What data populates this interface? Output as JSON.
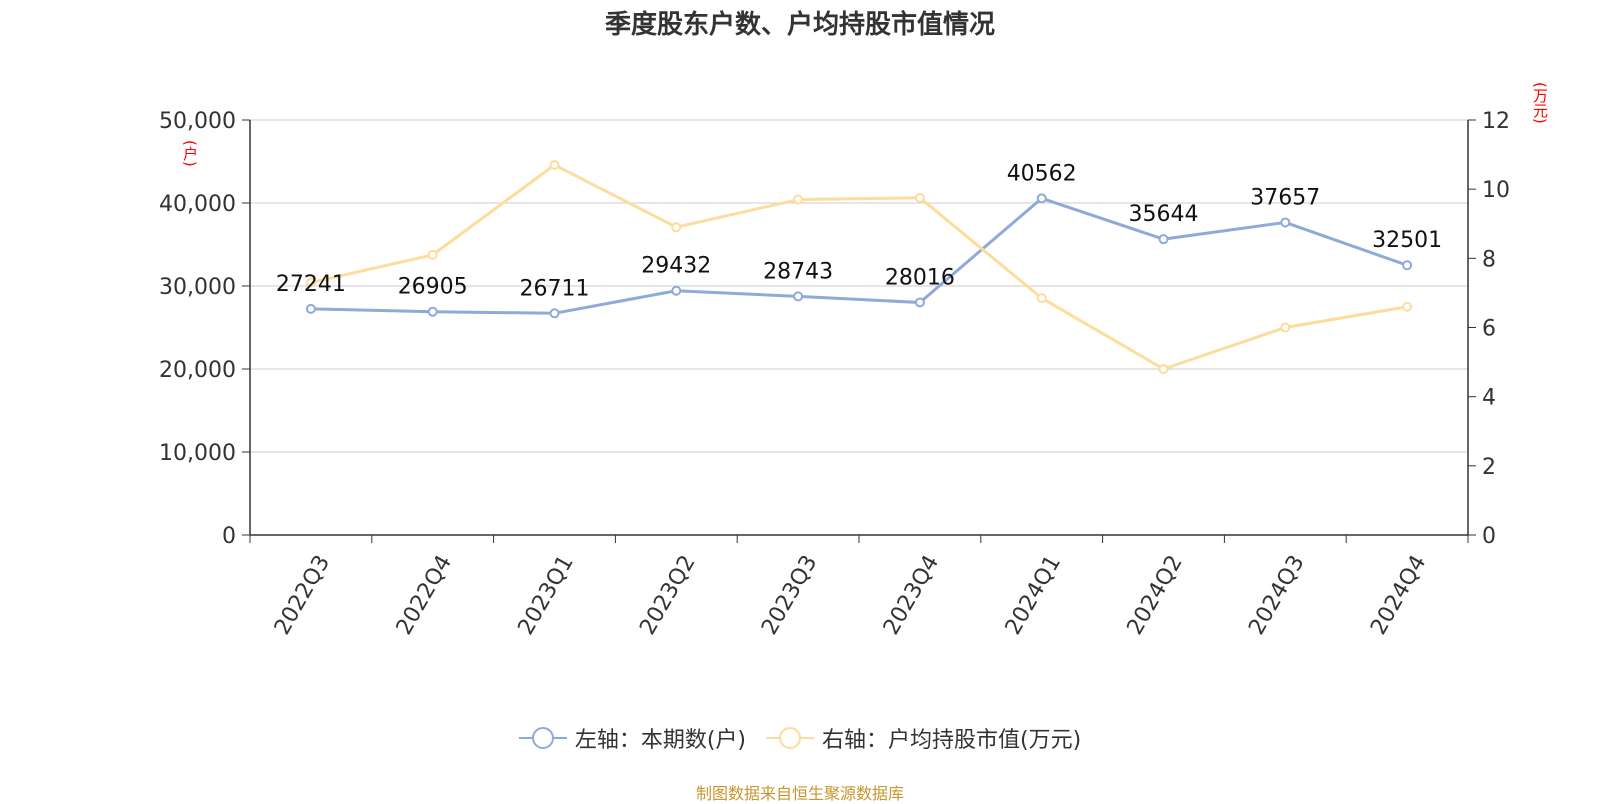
{
  "title": "季度股东户数、户均持股市值情况",
  "left_unit": "(户)",
  "right_unit": "(万元)",
  "legend": {
    "left_label": "左轴：本期数(户)",
    "right_label": "右轴：户均持股市值(万元)"
  },
  "footer": "制图数据来自恒生聚源数据库",
  "colors": {
    "left_series": "#8eaad9",
    "right_series": "#fddc9c",
    "grid": "#cccccc",
    "axis": "#333333",
    "footer": "#c8962e",
    "unit": "#ff0000"
  },
  "chart_data": {
    "type": "line",
    "categories": [
      "2022Q3",
      "2022Q4",
      "2023Q1",
      "2023Q2",
      "2023Q3",
      "2023Q4",
      "2024Q1",
      "2024Q2",
      "2024Q3",
      "2024Q4"
    ],
    "series": [
      {
        "name": "左轴：本期数(户)",
        "axis": "left",
        "values": [
          27241,
          26905,
          26711,
          29432,
          28743,
          28016,
          40562,
          35644,
          37657,
          32501
        ],
        "labels": [
          "27241",
          "26905",
          "26711",
          "29432",
          "28743",
          "28016",
          "40562",
          "35644",
          "37657",
          "32501"
        ]
      },
      {
        "name": "右轴：户均持股市值(万元)",
        "axis": "right",
        "values": [
          7.3,
          8.1,
          10.7,
          8.9,
          9.7,
          9.75,
          6.85,
          4.8,
          6.0,
          6.6
        ]
      }
    ],
    "left_axis": {
      "ylim": [
        0,
        50000
      ],
      "ticks": [
        0,
        10000,
        20000,
        30000,
        40000,
        50000
      ],
      "tick_labels": [
        "0",
        "10,000",
        "20,000",
        "30,000",
        "40,000",
        "50,000"
      ]
    },
    "right_axis": {
      "ylim": [
        0,
        12
      ],
      "ticks": [
        0,
        2,
        4,
        6,
        8,
        10,
        12
      ],
      "tick_labels": [
        "0",
        "2",
        "4",
        "6",
        "8",
        "10",
        "12"
      ]
    },
    "grid": true,
    "legend_position": "bottom"
  }
}
